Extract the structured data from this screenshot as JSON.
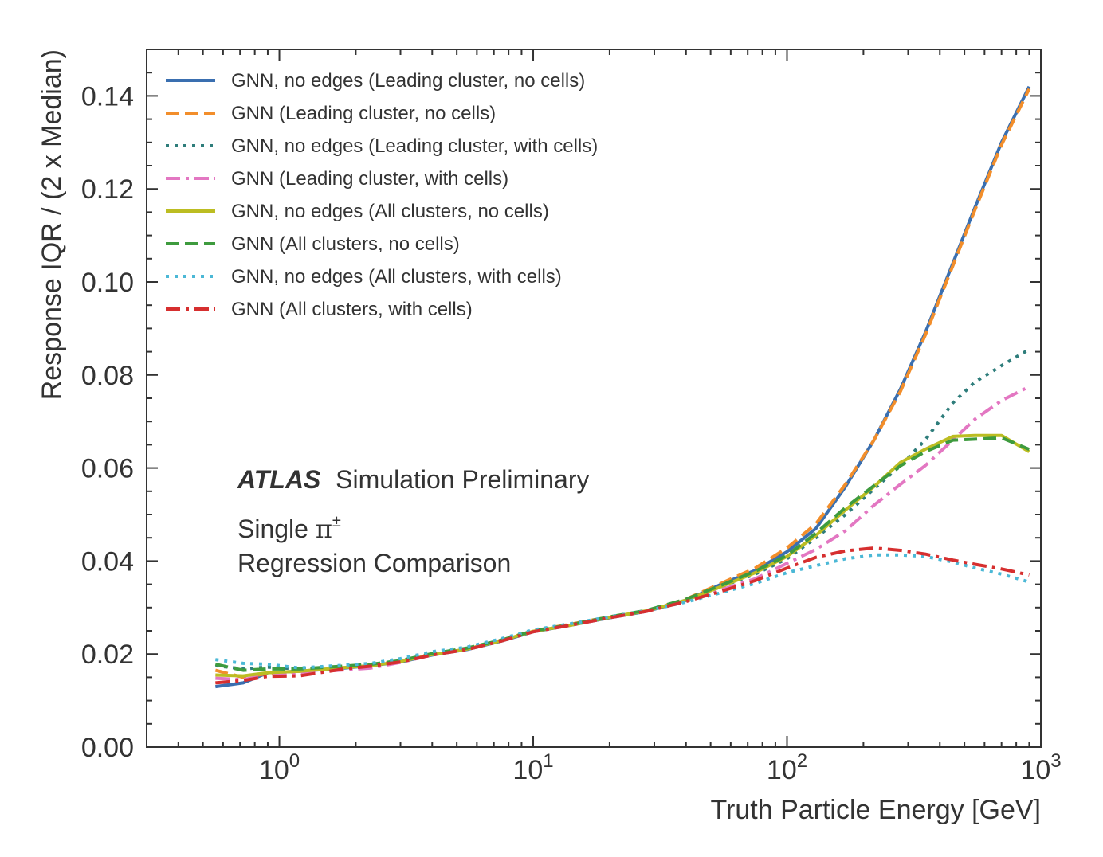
{
  "chart_data": {
    "type": "line",
    "xscale": "log",
    "xlim": [
      0.3,
      1000
    ],
    "ylim": [
      0.0,
      0.15
    ],
    "xlabel": "Truth Particle Energy [GeV]",
    "ylabel": "Response IQR / (2 x Median)",
    "x_ticks": [
      {
        "base": "10",
        "exp": "0",
        "value": 1
      },
      {
        "base": "10",
        "exp": "1",
        "value": 10
      },
      {
        "base": "10",
        "exp": "2",
        "value": 100
      },
      {
        "base": "10",
        "exp": "3",
        "value": 1000
      }
    ],
    "y_ticks": [
      "0.00",
      "0.02",
      "0.04",
      "0.06",
      "0.08",
      "0.10",
      "0.12",
      "0.14"
    ],
    "legend_position": "top-left",
    "annotations": {
      "experiment": "ATLAS",
      "status": "Simulation Preliminary",
      "line1_text": "Single ",
      "line1_symbol": "π",
      "line1_sup": "±",
      "line2": "Regression Comparison"
    },
    "series": [
      {
        "name": "GNN, no edges (Leading cluster, no cells)",
        "color": "#3a6fb0",
        "style": "solid",
        "x": [
          0.56,
          0.72,
          0.9,
          1.2,
          1.8,
          2.3,
          3,
          4,
          5.5,
          7.5,
          10,
          14,
          20,
          28,
          40,
          55,
          75,
          100,
          130,
          170,
          220,
          280,
          350,
          450,
          550,
          700,
          900
        ],
        "y": [
          0.013,
          0.0138,
          0.016,
          0.0163,
          0.017,
          0.0175,
          0.0183,
          0.0198,
          0.021,
          0.0228,
          0.0248,
          0.0262,
          0.0278,
          0.0292,
          0.0315,
          0.035,
          0.038,
          0.042,
          0.047,
          0.056,
          0.066,
          0.077,
          0.089,
          0.104,
          0.116,
          0.13,
          0.142
        ]
      },
      {
        "name": "GNN (Leading cluster, no cells)",
        "color": "#f28e2b",
        "style": "dashed",
        "x": [
          0.56,
          0.72,
          0.9,
          1.2,
          1.8,
          2.3,
          3,
          4,
          5.5,
          7.5,
          10,
          14,
          20,
          28,
          40,
          55,
          75,
          100,
          130,
          170,
          220,
          280,
          350,
          450,
          550,
          700,
          900
        ],
        "y": [
          0.0165,
          0.015,
          0.0158,
          0.0163,
          0.0172,
          0.0176,
          0.0185,
          0.02,
          0.0212,
          0.023,
          0.025,
          0.0264,
          0.028,
          0.0293,
          0.0318,
          0.0352,
          0.0385,
          0.0428,
          0.048,
          0.0565,
          0.066,
          0.0765,
          0.0885,
          0.1035,
          0.1155,
          0.1295,
          0.1415
        ]
      },
      {
        "name": "GNN, no edges (Leading cluster, with cells)",
        "color": "#2e7d7b",
        "style": "dotted",
        "x": [
          0.56,
          0.72,
          0.9,
          1.2,
          1.8,
          2.3,
          3,
          4,
          5.5,
          7.5,
          10,
          14,
          20,
          28,
          40,
          55,
          75,
          100,
          130,
          170,
          220,
          280,
          350,
          450,
          550,
          700,
          900
        ],
        "y": [
          0.0175,
          0.0168,
          0.0172,
          0.0168,
          0.0173,
          0.0177,
          0.0186,
          0.0202,
          0.0213,
          0.0231,
          0.025,
          0.0263,
          0.0279,
          0.0293,
          0.0316,
          0.0345,
          0.0372,
          0.0405,
          0.045,
          0.05,
          0.0555,
          0.0605,
          0.066,
          0.074,
          0.0785,
          0.082,
          0.0855
        ]
      },
      {
        "name": "GNN (Leading cluster, with cells)",
        "color": "#e377c2",
        "style": "dashdot",
        "x": [
          0.56,
          0.72,
          0.9,
          1.2,
          1.8,
          2.3,
          3,
          4,
          5.5,
          7.5,
          10,
          14,
          20,
          28,
          40,
          55,
          75,
          100,
          130,
          170,
          220,
          280,
          350,
          450,
          550,
          700,
          900
        ],
        "y": [
          0.0148,
          0.0145,
          0.0155,
          0.016,
          0.0166,
          0.017,
          0.0182,
          0.0198,
          0.0211,
          0.0229,
          0.0248,
          0.0262,
          0.0278,
          0.0292,
          0.0314,
          0.0338,
          0.0362,
          0.0395,
          0.0425,
          0.0465,
          0.052,
          0.0565,
          0.0605,
          0.066,
          0.0705,
          0.0745,
          0.0775
        ]
      },
      {
        "name": "GNN, no edges (All clusters, no cells)",
        "color": "#bcbd22",
        "style": "solid",
        "x": [
          0.56,
          0.72,
          0.9,
          1.2,
          1.8,
          2.3,
          3,
          4,
          5.5,
          7.5,
          10,
          14,
          20,
          28,
          40,
          55,
          75,
          100,
          130,
          170,
          220,
          280,
          350,
          450,
          550,
          700,
          900
        ],
        "y": [
          0.0155,
          0.0153,
          0.016,
          0.0163,
          0.0171,
          0.0175,
          0.0184,
          0.0199,
          0.0211,
          0.0229,
          0.0249,
          0.0262,
          0.0279,
          0.0293,
          0.0316,
          0.0345,
          0.0375,
          0.041,
          0.0455,
          0.051,
          0.056,
          0.0612,
          0.064,
          0.0668,
          0.067,
          0.067,
          0.0635
        ]
      },
      {
        "name": "GNN (All clusters, no cells)",
        "color": "#3e9b3e",
        "style": "dashed",
        "x": [
          0.56,
          0.72,
          0.9,
          1.2,
          1.8,
          2.3,
          3,
          4,
          5.5,
          7.5,
          10,
          14,
          20,
          28,
          40,
          55,
          75,
          100,
          130,
          170,
          220,
          280,
          350,
          450,
          550,
          700,
          900
        ],
        "y": [
          0.0178,
          0.0165,
          0.0168,
          0.0168,
          0.0174,
          0.0178,
          0.0186,
          0.0201,
          0.0213,
          0.023,
          0.025,
          0.0263,
          0.028,
          0.0294,
          0.0318,
          0.0348,
          0.0378,
          0.0412,
          0.046,
          0.0515,
          0.0562,
          0.0605,
          0.0635,
          0.066,
          0.0662,
          0.0665,
          0.064
        ]
      },
      {
        "name": "GNN, no edges (All clusters, with cells)",
        "color": "#4bb8d6",
        "style": "dotted",
        "x": [
          0.56,
          0.72,
          0.9,
          1.2,
          1.8,
          2.3,
          3,
          4,
          5.5,
          7.5,
          10,
          14,
          20,
          28,
          40,
          55,
          75,
          100,
          130,
          170,
          220,
          280,
          350,
          450,
          550,
          700,
          900
        ],
        "y": [
          0.0188,
          0.018,
          0.0178,
          0.017,
          0.0176,
          0.018,
          0.019,
          0.0205,
          0.0215,
          0.0233,
          0.0252,
          0.0265,
          0.028,
          0.0293,
          0.0312,
          0.0332,
          0.0352,
          0.0375,
          0.039,
          0.0405,
          0.0413,
          0.0413,
          0.041,
          0.0398,
          0.0385,
          0.0372,
          0.0355
        ]
      },
      {
        "name": "GNN (All clusters, with cells)",
        "color": "#d62f2f",
        "style": "dashdot",
        "x": [
          0.56,
          0.72,
          0.9,
          1.2,
          1.8,
          2.3,
          3,
          4,
          5.5,
          7.5,
          10,
          14,
          20,
          28,
          40,
          55,
          75,
          100,
          130,
          170,
          220,
          280,
          350,
          450,
          550,
          700,
          900
        ],
        "y": [
          0.0138,
          0.0143,
          0.0152,
          0.0153,
          0.0168,
          0.0174,
          0.0183,
          0.0198,
          0.021,
          0.0228,
          0.0248,
          0.0262,
          0.0278,
          0.0292,
          0.0313,
          0.0335,
          0.0358,
          0.0385,
          0.0408,
          0.0422,
          0.0428,
          0.0423,
          0.0415,
          0.0402,
          0.0393,
          0.0383,
          0.037
        ]
      }
    ]
  }
}
